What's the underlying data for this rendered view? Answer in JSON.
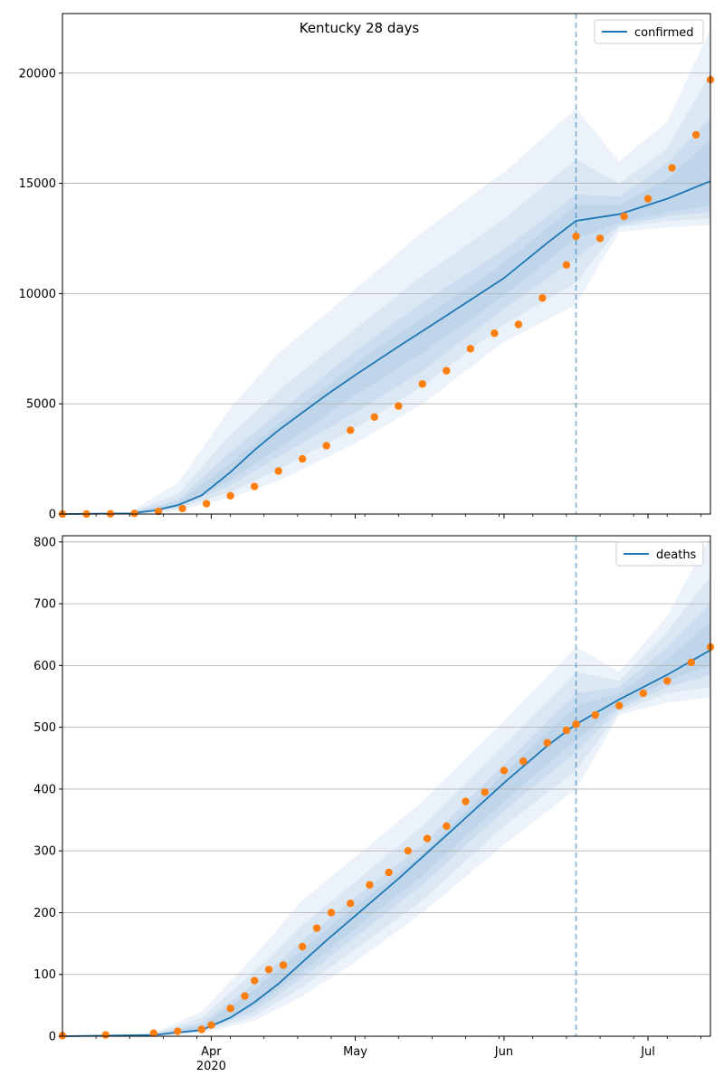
{
  "figure": {
    "title": "Kentucky 28 days"
  },
  "chart_data": [
    {
      "type": "line",
      "legend": [
        "confirmed"
      ],
      "legend_placement": "top-right",
      "grid": "y",
      "x_axis": {
        "start": "2020-03-01",
        "end": "2020-07-14",
        "tick_labels": [
          "Apr",
          "May",
          "Jun",
          "Jul"
        ],
        "year_label": "2020"
      },
      "ylim": [
        0,
        22700
      ],
      "yticks": [
        0,
        5000,
        10000,
        15000,
        20000
      ],
      "forecast_start": "2020-06-16",
      "model_median": {
        "x": [
          "2020-03-01",
          "2020-03-15",
          "2020-03-20",
          "2020-03-25",
          "2020-03-30",
          "2020-04-05",
          "2020-04-10",
          "2020-04-15",
          "2020-04-20",
          "2020-04-25",
          "2020-05-01",
          "2020-05-10",
          "2020-05-20",
          "2020-06-01",
          "2020-06-10",
          "2020-06-16",
          "2020-06-25",
          "2020-07-05",
          "2020-07-14"
        ],
        "y": [
          0,
          30,
          150,
          400,
          850,
          1900,
          2900,
          3800,
          4600,
          5400,
          6300,
          7600,
          9000,
          10700,
          12300,
          13300,
          13600,
          14300,
          15100
        ]
      },
      "bands": [
        {
          "level": "outer",
          "x": [
            "2020-03-01",
            "2020-03-15",
            "2020-03-25",
            "2020-04-05",
            "2020-04-15",
            "2020-05-01",
            "2020-05-15",
            "2020-06-01",
            "2020-06-16",
            "2020-06-25",
            "2020-07-05",
            "2020-07-14"
          ],
          "upper": [
            0,
            80,
            1400,
            4800,
            7300,
            10200,
            12800,
            15500,
            18400,
            16000,
            17800,
            22000
          ],
          "lower": [
            0,
            0,
            150,
            750,
            1500,
            3200,
            5000,
            7800,
            9500,
            12800,
            13000,
            13100
          ]
        },
        {
          "level": "wide",
          "x": [
            "2020-03-01",
            "2020-03-15",
            "2020-03-25",
            "2020-04-05",
            "2020-04-15",
            "2020-05-01",
            "2020-05-15",
            "2020-06-01",
            "2020-06-16",
            "2020-06-25",
            "2020-07-05",
            "2020-07-14"
          ],
          "upper": [
            0,
            60,
            900,
            3600,
            5600,
            8400,
            10800,
            13400,
            16100,
            15000,
            16600,
            20000
          ],
          "lower": [
            0,
            5,
            230,
            1000,
            2000,
            3900,
            5800,
            8600,
            10500,
            13000,
            13300,
            13400
          ]
        },
        {
          "level": "mid",
          "x": [
            "2020-03-01",
            "2020-03-15",
            "2020-03-25",
            "2020-04-05",
            "2020-04-15",
            "2020-05-01",
            "2020-05-15",
            "2020-06-01",
            "2020-06-16",
            "2020-06-25",
            "2020-07-05",
            "2020-07-14"
          ],
          "upper": [
            0,
            45,
            650,
            2800,
            4600,
            7400,
            9600,
            12000,
            14500,
            14400,
            15900,
            18000
          ],
          "lower": [
            0,
            12,
            300,
            1300,
            2600,
            4600,
            6500,
            9300,
            11600,
            13100,
            13500,
            13700
          ]
        },
        {
          "level": "inner",
          "x": [
            "2020-03-01",
            "2020-03-15",
            "2020-03-25",
            "2020-04-05",
            "2020-04-15",
            "2020-05-01",
            "2020-05-15",
            "2020-06-01",
            "2020-06-16",
            "2020-06-25",
            "2020-07-05",
            "2020-07-14"
          ],
          "upper": [
            0,
            38,
            520,
            2300,
            4100,
            6800,
            8900,
            11400,
            14000,
            14000,
            15200,
            17000
          ],
          "lower": [
            0,
            22,
            330,
            1550,
            3000,
            5400,
            7300,
            9900,
            12500,
            13200,
            13700,
            14000
          ]
        }
      ],
      "observed": {
        "x": [
          "2020-03-01",
          "2020-03-06",
          "2020-03-11",
          "2020-03-16",
          "2020-03-21",
          "2020-03-26",
          "2020-03-31",
          "2020-04-05",
          "2020-04-10",
          "2020-04-15",
          "2020-04-20",
          "2020-04-25",
          "2020-04-30",
          "2020-05-05",
          "2020-05-10",
          "2020-05-15",
          "2020-05-20",
          "2020-05-25",
          "2020-05-30",
          "2020-06-04",
          "2020-06-09",
          "2020-06-14",
          "2020-06-16",
          "2020-06-21",
          "2020-06-26",
          "2020-07-01",
          "2020-07-06",
          "2020-07-11",
          "2020-07-14"
        ],
        "y": [
          0,
          0,
          10,
          30,
          120,
          250,
          470,
          830,
          1250,
          1950,
          2500,
          3100,
          3800,
          4400,
          4900,
          5900,
          6500,
          7500,
          8200,
          8600,
          9800,
          11300,
          12600,
          12500,
          13500,
          14300,
          15700,
          17200,
          19700
        ]
      }
    },
    {
      "type": "line",
      "legend": [
        "deaths"
      ],
      "legend_placement": "top-right",
      "grid": "y",
      "x_axis": {
        "start": "2020-03-01",
        "end": "2020-07-14",
        "tick_labels": [
          "Apr",
          "May",
          "Jun",
          "Jul"
        ],
        "year_label": "2020"
      },
      "ylim": [
        0,
        810
      ],
      "yticks": [
        0,
        100,
        200,
        300,
        400,
        500,
        600,
        700,
        800
      ],
      "forecast_start": "2020-06-16",
      "model_median": {
        "x": [
          "2020-03-01",
          "2020-03-20",
          "2020-03-30",
          "2020-04-05",
          "2020-04-10",
          "2020-04-15",
          "2020-04-20",
          "2020-04-25",
          "2020-05-01",
          "2020-05-10",
          "2020-05-20",
          "2020-06-01",
          "2020-06-10",
          "2020-06-16",
          "2020-06-25",
          "2020-07-05",
          "2020-07-14"
        ],
        "y": [
          0,
          2,
          10,
          30,
          55,
          85,
          120,
          155,
          195,
          255,
          325,
          410,
          470,
          505,
          545,
          585,
          625
        ]
      },
      "bands": [
        {
          "level": "outer",
          "x": [
            "2020-03-01",
            "2020-03-20",
            "2020-03-30",
            "2020-04-10",
            "2020-04-20",
            "2020-05-01",
            "2020-05-15",
            "2020-06-01",
            "2020-06-16",
            "2020-06-25",
            "2020-07-05",
            "2020-07-14"
          ],
          "upper": [
            0,
            5,
            40,
            130,
            220,
            290,
            380,
            510,
            630,
            590,
            680,
            810
          ],
          "lower": [
            0,
            0,
            5,
            25,
            65,
            120,
            200,
            310,
            400,
            520,
            540,
            548
          ]
        },
        {
          "level": "wide",
          "x": [
            "2020-03-01",
            "2020-03-20",
            "2020-03-30",
            "2020-04-10",
            "2020-04-20",
            "2020-05-01",
            "2020-05-15",
            "2020-06-01",
            "2020-06-16",
            "2020-06-25",
            "2020-07-05",
            "2020-07-14"
          ],
          "upper": [
            0,
            4,
            30,
            105,
            180,
            250,
            340,
            470,
            590,
            575,
            655,
            745
          ],
          "lower": [
            0,
            0,
            7,
            32,
            80,
            140,
            220,
            340,
            430,
            525,
            555,
            565
          ]
        },
        {
          "level": "mid",
          "x": [
            "2020-03-01",
            "2020-03-20",
            "2020-03-30",
            "2020-04-10",
            "2020-04-20",
            "2020-05-01",
            "2020-05-15",
            "2020-06-01",
            "2020-06-16",
            "2020-06-25",
            "2020-07-05",
            "2020-07-14"
          ],
          "upper": [
            0,
            3,
            22,
            85,
            155,
            225,
            310,
            440,
            555,
            565,
            630,
            700
          ],
          "lower": [
            0,
            1,
            9,
            40,
            95,
            160,
            245,
            365,
            460,
            530,
            565,
            585
          ]
        },
        {
          "level": "inner",
          "x": [
            "2020-03-01",
            "2020-03-20",
            "2020-03-30",
            "2020-04-10",
            "2020-04-20",
            "2020-05-01",
            "2020-05-15",
            "2020-06-01",
            "2020-06-16",
            "2020-06-25",
            "2020-07-05",
            "2020-07-14"
          ],
          "upper": [
            0,
            3,
            17,
            75,
            140,
            210,
            295,
            425,
            535,
            555,
            610,
            670
          ],
          "lower": [
            0,
            1,
            11,
            48,
            105,
            175,
            260,
            380,
            480,
            535,
            575,
            600
          ]
        }
      ],
      "observed": {
        "x": [
          "2020-03-01",
          "2020-03-10",
          "2020-03-20",
          "2020-03-25",
          "2020-03-30",
          "2020-04-01",
          "2020-04-05",
          "2020-04-08",
          "2020-04-10",
          "2020-04-13",
          "2020-04-16",
          "2020-04-20",
          "2020-04-23",
          "2020-04-26",
          "2020-04-30",
          "2020-05-04",
          "2020-05-08",
          "2020-05-12",
          "2020-05-16",
          "2020-05-20",
          "2020-05-24",
          "2020-05-28",
          "2020-06-01",
          "2020-06-05",
          "2020-06-10",
          "2020-06-14",
          "2020-06-16",
          "2020-06-20",
          "2020-06-25",
          "2020-06-30",
          "2020-07-05",
          "2020-07-10",
          "2020-07-14"
        ],
        "y": [
          1,
          2,
          5,
          8,
          11,
          18,
          45,
          65,
          90,
          108,
          115,
          145,
          175,
          200,
          215,
          245,
          265,
          300,
          320,
          340,
          380,
          395,
          430,
          445,
          475,
          495,
          505,
          520,
          535,
          555,
          575,
          605,
          630
        ]
      }
    }
  ]
}
